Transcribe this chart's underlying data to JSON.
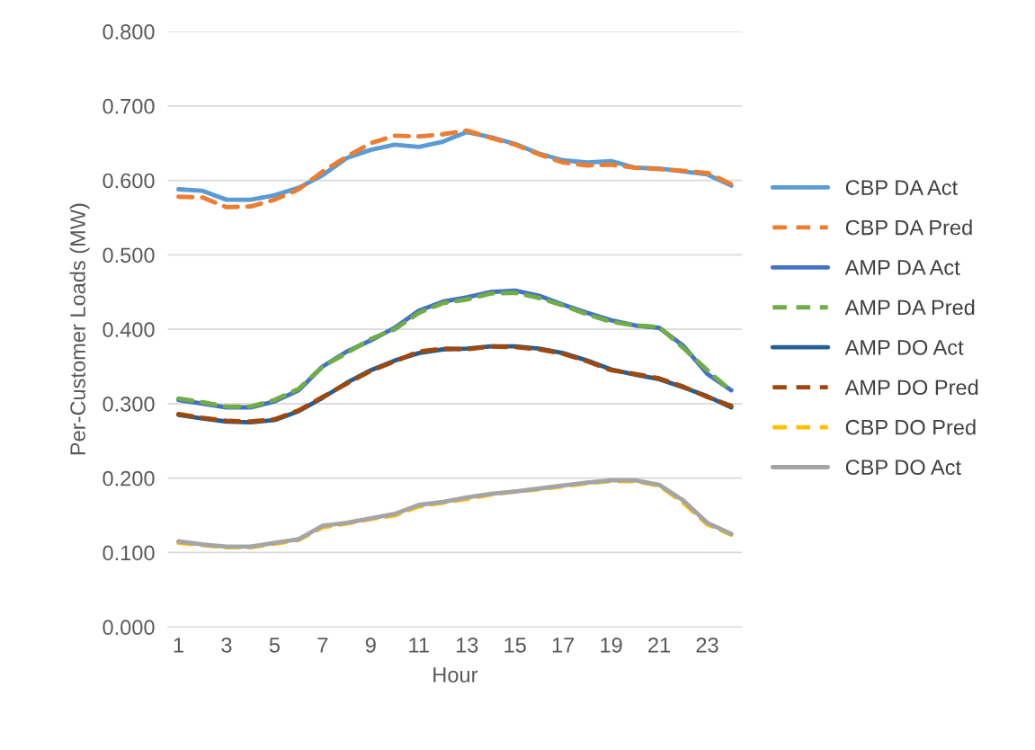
{
  "chart_data": {
    "type": "line",
    "xlabel": "Hour",
    "ylabel": "Per-Customer Loads (MW)",
    "categories": [
      "1",
      null,
      "3",
      null,
      "5",
      null,
      "7",
      null,
      "9",
      null,
      "11",
      null,
      "13",
      null,
      "15",
      null,
      "17",
      null,
      "19",
      null,
      "21",
      null,
      "23",
      null
    ],
    "ylim": [
      0,
      0.8
    ],
    "yticks": [
      {
        "value": 0,
        "label": "0.000"
      },
      {
        "value": 0.1,
        "label": "0.100"
      },
      {
        "value": 0.2,
        "label": "0.200"
      },
      {
        "value": 0.3,
        "label": "0.300"
      },
      {
        "value": 0.4,
        "label": "0.400"
      },
      {
        "value": 0.5,
        "label": "0.500"
      },
      {
        "value": 0.6,
        "label": "0.600"
      },
      {
        "value": 0.7,
        "label": "0.700"
      },
      {
        "value": 0.8,
        "label": "0.800"
      }
    ],
    "grid": "y",
    "legend": "right",
    "marker": "none",
    "series": [
      {
        "name": "CBP DA Act",
        "color": "#5b9bd5",
        "line_style": "solid",
        "values": [
          0.588,
          0.586,
          0.574,
          0.574,
          0.58,
          0.59,
          0.607,
          0.63,
          0.641,
          0.648,
          0.645,
          0.652,
          0.665,
          0.658,
          0.649,
          0.636,
          0.627,
          0.624,
          0.626,
          0.617,
          0.616,
          0.612,
          0.608,
          0.593
        ]
      },
      {
        "name": "CBP DA Pred",
        "color": "#ed7d31",
        "line_style": "dashed",
        "values": [
          0.578,
          0.577,
          0.564,
          0.565,
          0.574,
          0.588,
          0.612,
          0.632,
          0.65,
          0.66,
          0.659,
          0.662,
          0.667,
          0.657,
          0.648,
          0.635,
          0.624,
          0.62,
          0.621,
          0.617,
          0.615,
          0.613,
          0.61,
          0.595
        ]
      },
      {
        "name": "AMP DA Act",
        "color": "#4472c4",
        "line_style": "solid",
        "values": [
          0.305,
          0.3,
          0.295,
          0.295,
          0.303,
          0.318,
          0.35,
          0.37,
          0.385,
          0.402,
          0.425,
          0.437,
          0.443,
          0.45,
          0.452,
          0.445,
          0.433,
          0.422,
          0.412,
          0.405,
          0.402,
          0.378,
          0.34,
          0.318
        ]
      },
      {
        "name": "AMP DA Pred",
        "color": "#70ad47",
        "line_style": "dashed",
        "values": [
          0.307,
          0.302,
          0.296,
          0.296,
          0.305,
          0.32,
          0.35,
          0.368,
          0.387,
          0.4,
          0.422,
          0.435,
          0.44,
          0.448,
          0.449,
          0.442,
          0.432,
          0.42,
          0.41,
          0.405,
          0.403,
          0.375,
          0.345,
          0.317
        ]
      },
      {
        "name": "AMP DO Act",
        "color": "#255e91",
        "line_style": "solid",
        "values": [
          0.285,
          0.28,
          0.276,
          0.275,
          0.278,
          0.29,
          0.308,
          0.328,
          0.345,
          0.358,
          0.368,
          0.373,
          0.374,
          0.377,
          0.377,
          0.374,
          0.368,
          0.358,
          0.346,
          0.339,
          0.333,
          0.322,
          0.31,
          0.295
        ]
      },
      {
        "name": "AMP DO Pred",
        "color": "#9e480e",
        "line_style": "dashed",
        "values": [
          0.286,
          0.281,
          0.277,
          0.276,
          0.279,
          0.291,
          0.309,
          0.327,
          0.344,
          0.357,
          0.37,
          0.374,
          0.373,
          0.377,
          0.376,
          0.373,
          0.367,
          0.357,
          0.345,
          0.34,
          0.334,
          0.323,
          0.309,
          0.297
        ]
      },
      {
        "name": "CBP DO Pred",
        "color": "#ffc000",
        "line_style": "dashed",
        "values": [
          0.113,
          0.11,
          0.107,
          0.107,
          0.112,
          0.117,
          0.134,
          0.139,
          0.145,
          0.15,
          0.162,
          0.167,
          0.172,
          0.178,
          0.182,
          0.185,
          0.189,
          0.193,
          0.196,
          0.196,
          0.19,
          0.167,
          0.138,
          0.124
        ]
      },
      {
        "name": "CBP DO Act",
        "color": "#a5a5a5",
        "line_style": "solid",
        "values": [
          0.115,
          0.111,
          0.108,
          0.108,
          0.113,
          0.118,
          0.136,
          0.14,
          0.146,
          0.152,
          0.164,
          0.168,
          0.174,
          0.179,
          0.182,
          0.186,
          0.19,
          0.194,
          0.197,
          0.197,
          0.191,
          0.17,
          0.14,
          0.125
        ]
      }
    ]
  }
}
